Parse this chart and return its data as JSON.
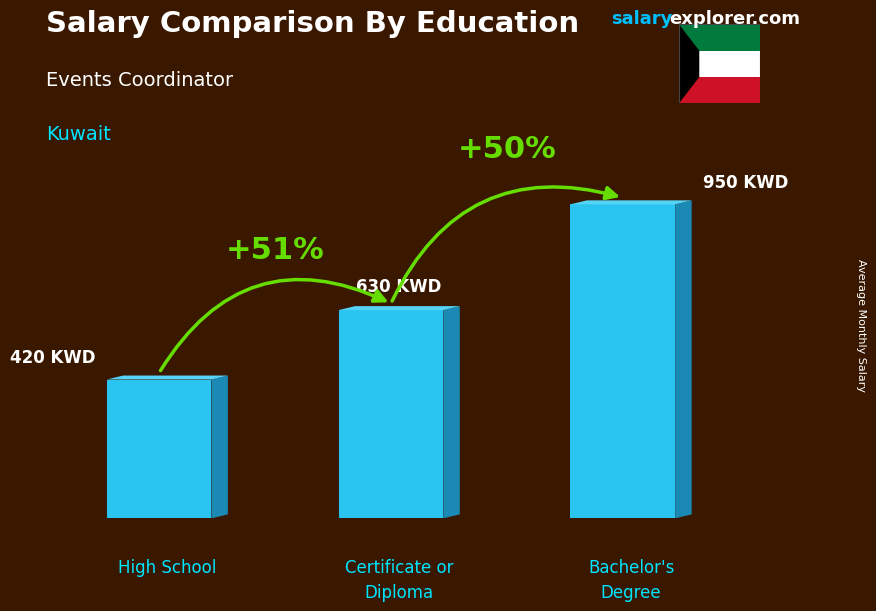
{
  "title": "Salary Comparison By Education",
  "subtitle": "Events Coordinator",
  "country": "Kuwait",
  "categories": [
    "High School",
    "Certificate or\nDiploma",
    "Bachelor's\nDegree"
  ],
  "values": [
    420,
    630,
    950
  ],
  "labels": [
    "420 KWD",
    "630 KWD",
    "950 KWD"
  ],
  "bar_color_face": "#29C4F0",
  "bar_color_side": "#1A8AB5",
  "bar_color_top": "#55D4F8",
  "pct_labels": [
    "+51%",
    "+50%"
  ],
  "title_color": "#FFFFFF",
  "subtitle_color": "#FFFFFF",
  "country_color": "#00E5FF",
  "label_color": "#FFFFFF",
  "cat_color": "#00E5FF",
  "pct_color": "#AAEE00",
  "arrow_color": "#66DD00",
  "watermark_salary_color": "#00BFFF",
  "watermark_explorer_color": "#FFFFFF",
  "ylabel_text": "Average Monthly Salary",
  "ylabel_color": "#FFFFFF",
  "bg_color": "#3A1800",
  "figsize": [
    8.5,
    6.06
  ],
  "dpi": 100
}
